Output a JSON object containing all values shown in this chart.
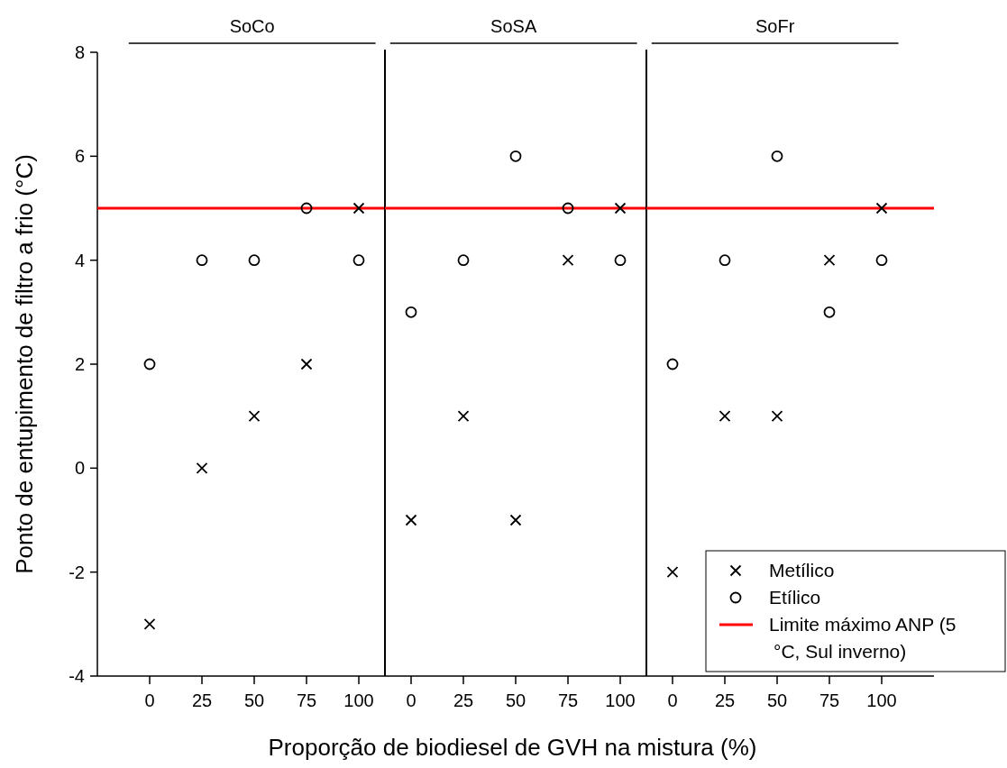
{
  "chart_data": [
    {
      "type": "scatter",
      "title": "SoCo",
      "ylabel": "Ponto de entupimento de filtro a frio (°C)",
      "x": [
        0,
        25,
        50,
        75,
        100
      ],
      "xlim": [
        -25,
        112.5
      ],
      "ylim": [
        -4,
        8
      ],
      "xticks": [
        0,
        25,
        50,
        75,
        100
      ],
      "yticks": [
        -4,
        -2,
        0,
        2,
        4,
        6,
        8
      ],
      "grid": false,
      "legend": false,
      "series": [
        {
          "color": "#000000",
          "marker": "cross",
          "values": [
            -3,
            0,
            1,
            2,
            5
          ]
        },
        {
          "color": "#000000",
          "marker": "circle",
          "values": [
            2,
            4,
            4,
            5,
            4
          ]
        }
      ],
      "ref_lines": [
        {
          "axis": "y",
          "value": 5,
          "color": "#ff0000"
        }
      ]
    },
    {
      "type": "scatter",
      "title": "SoSA",
      "xlabel": "Proporção de biodiesel de GVH na mistura (%)",
      "x": [
        0,
        25,
        50,
        75,
        100
      ],
      "xlim": [
        -12.5,
        112.5
      ],
      "ylim": [
        -4,
        8
      ],
      "xticks": [
        0,
        25,
        50,
        75,
        100
      ],
      "yticks": [
        -4,
        -2,
        0,
        2,
        4,
        6,
        8
      ],
      "grid": false,
      "legend": false,
      "tick_labels": "x",
      "series": [
        {
          "color": "#000000",
          "marker": "cross",
          "values": [
            -1,
            1,
            -1,
            4,
            5
          ]
        },
        {
          "color": "#000000",
          "marker": "circle",
          "values": [
            3,
            4,
            6,
            5,
            4
          ]
        }
      ],
      "ref_lines": [
        {
          "axis": "y",
          "value": 5,
          "color": "#ff0000"
        }
      ]
    },
    {
      "type": "scatter",
      "title": "SoFr",
      "x": [
        0,
        25,
        50,
        75,
        100
      ],
      "xlim": [
        -12.5,
        125
      ],
      "ylim": [
        -4,
        8
      ],
      "xticks": [
        0,
        25,
        50,
        75,
        100
      ],
      "yticks": [
        -4,
        -2,
        0,
        2,
        4,
        6,
        8
      ],
      "grid": false,
      "legend": "bottom right",
      "tick_labels": "x",
      "series": [
        {
          "name": "Metílico",
          "color": "#000000",
          "marker": "cross",
          "values": [
            -2,
            1,
            1,
            4,
            5
          ]
        },
        {
          "name": "Etílico",
          "color": "#000000",
          "marker": "circle",
          "values": [
            2,
            4,
            6,
            3,
            4
          ]
        }
      ],
      "ref_lines": [
        {
          "axis": "y",
          "value": 5,
          "color": "#ff0000",
          "label": "Limite máximo ANP (5 °C, Sul inverno)"
        }
      ]
    }
  ]
}
